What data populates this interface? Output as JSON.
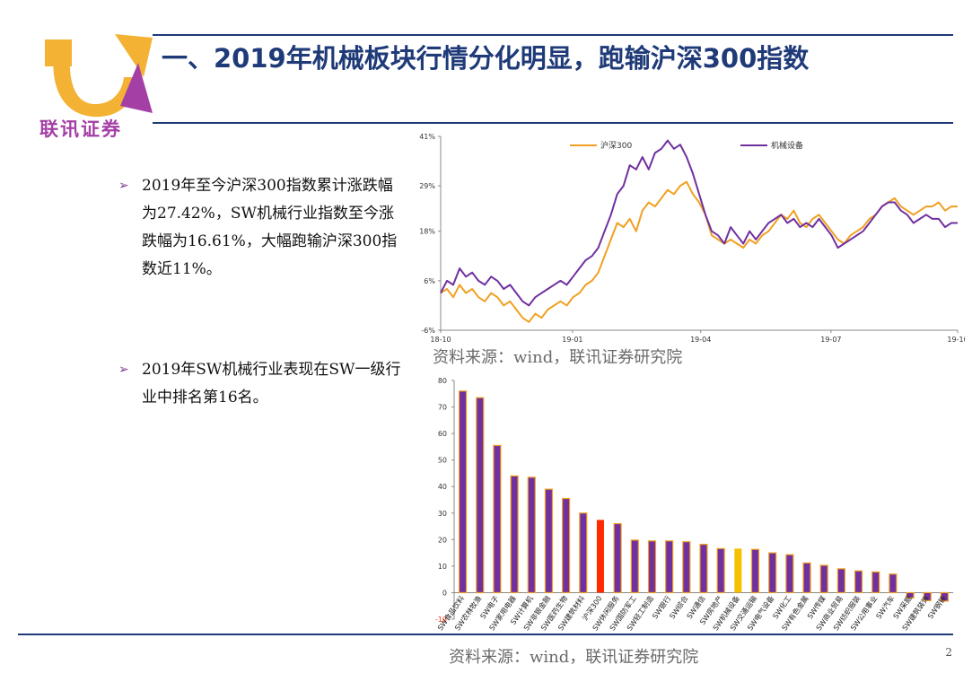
{
  "slide": {
    "title": "一、2019年机械板块行情分化明显，跑输沪深300指数",
    "logo_text": "联讯证券",
    "page_number": "2"
  },
  "bullets": [
    {
      "text": "2019年至今沪深300指数累计涨跌幅为27.42%，SW机械行业指数至今涨跌幅为16.61%，大幅跑输沪深300指数近11%。"
    },
    {
      "text": "2019年SW机械行业表现在SW一级行业中排名第16名。"
    }
  ],
  "captions": {
    "line_source": "资料来源：wind，联讯证券研究院",
    "bar_source": "资料来源：wind，联讯证券研究院"
  },
  "colors": {
    "navy": "#1f3a78",
    "purple": "#7030a0",
    "orange": "#f0a020",
    "red": "#ff2a00"
  },
  "chart_data": [
    {
      "type": "line",
      "title": "",
      "ylim": [
        -6,
        41
      ],
      "y_ticks": [
        "41%",
        "29%",
        "18%",
        "6%",
        "-6%"
      ],
      "y_tick_values": [
        41,
        29,
        18,
        6,
        -6
      ],
      "x_ticks": [
        "18-10",
        "19-01",
        "19-04",
        "19-07",
        "19-10"
      ],
      "legend": "top-center",
      "series": [
        {
          "name": "沪深300",
          "color": "#f0a020",
          "values": [
            3,
            4,
            2,
            5,
            3,
            4,
            2,
            1,
            3,
            2,
            0,
            1,
            -1,
            -3,
            -4,
            -2,
            -3,
            -1,
            0,
            1,
            0,
            2,
            3,
            5,
            6,
            8,
            12,
            16,
            20,
            19,
            21,
            18,
            23,
            25,
            24,
            26,
            28,
            27,
            29,
            30,
            27,
            25,
            22,
            17,
            16,
            15,
            16,
            15,
            14,
            16,
            15,
            17,
            18,
            20,
            22,
            21,
            23,
            20,
            19,
            21,
            22,
            20,
            18,
            16,
            15,
            17,
            18,
            19,
            21,
            22,
            24,
            25,
            26,
            24,
            23,
            22,
            23,
            24,
            24,
            25,
            23,
            24,
            24
          ]
        },
        {
          "name": "机械设备",
          "color": "#7030a0",
          "values": [
            3,
            6,
            5,
            9,
            7,
            8,
            6,
            5,
            7,
            6,
            4,
            5,
            3,
            1,
            0,
            2,
            3,
            4,
            5,
            6,
            5,
            7,
            9,
            11,
            12,
            14,
            18,
            22,
            27,
            29,
            34,
            33,
            36,
            33,
            37,
            38,
            40,
            38,
            39,
            36,
            32,
            27,
            22,
            18,
            17,
            15,
            19,
            17,
            15,
            18,
            16,
            18,
            20,
            21,
            22,
            20,
            21,
            19,
            20,
            19,
            21,
            19,
            17,
            14,
            15,
            16,
            17,
            18,
            20,
            22,
            24,
            25,
            25,
            23,
            22,
            20,
            21,
            22,
            21,
            21,
            19,
            20,
            20
          ]
        }
      ]
    },
    {
      "type": "bar",
      "title": "",
      "ylim": [
        -10,
        80
      ],
      "y_ticks": [
        "80",
        "70",
        "60",
        "50",
        "40",
        "30",
        "20",
        "10",
        "0",
        "-10"
      ],
      "y_tick_values": [
        80,
        70,
        60,
        50,
        40,
        30,
        20,
        10,
        0,
        -10
      ],
      "categories": [
        "SW食品饮料",
        "SW农林牧渔",
        "SW电子",
        "SW家用电器",
        "SW计算机",
        "SW非银金融",
        "SW医药生物",
        "SW建筑材料",
        "沪深300",
        "SW休闲服务",
        "SW国防军工",
        "SW轻工制造",
        "SW银行",
        "SW综合",
        "SW通信",
        "SW房地产",
        "SW机械设备",
        "SW交通运输",
        "SW电气设备",
        "SW化工",
        "SW有色金属",
        "SW传媒",
        "SW商业贸易",
        "SW纺织服装",
        "SW公用事业",
        "SW汽车",
        "SW采掘",
        "SW建筑装饰",
        "SW钢铁"
      ],
      "values": [
        76,
        73.5,
        55.5,
        44,
        43.5,
        39,
        35.5,
        30,
        27.42,
        26,
        19.8,
        19.5,
        19.5,
        19.2,
        18.2,
        16.6,
        16.61,
        16.3,
        15,
        14.3,
        11.2,
        10.3,
        9,
        8.2,
        7.8,
        7,
        -2,
        -3,
        -3.2
      ],
      "highlight": {
        "沪深300": "#ff2a00",
        "SW机械设备": "#f5c000"
      },
      "bar_color": "#7030a0",
      "bar_stroke": "#f0a020"
    }
  ]
}
